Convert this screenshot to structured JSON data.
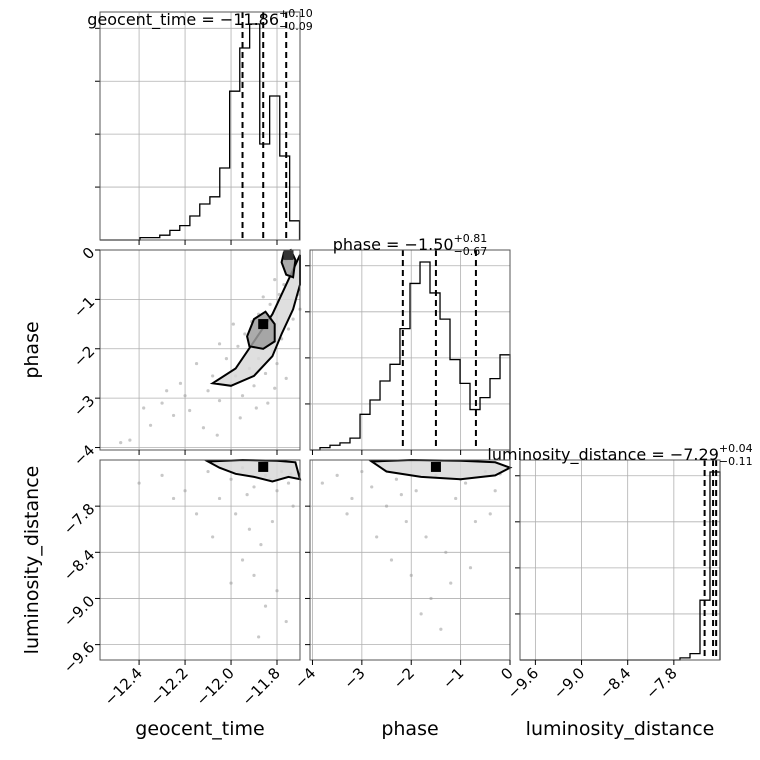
{
  "chart_data": {
    "type": "corner",
    "parameters": [
      "geocent_time",
      "phase",
      "luminosity_distance"
    ],
    "axis_labels": {
      "geocent_time": "geocent_time",
      "phase": "phase",
      "luminosity_distance": "luminosity_distance"
    },
    "titles": [
      {
        "parameter": "geocent_time",
        "prefix": "geocent_time = ",
        "median": "−11.86",
        "upper": "+0.10",
        "lower": "−0.09"
      },
      {
        "parameter": "phase",
        "prefix": "phase = ",
        "median": "−1.50",
        "upper": "+0.81",
        "lower": "−0.67"
      },
      {
        "parameter": "luminosity_distance",
        "prefix": "luminosity_distance = ",
        "median": "−7.29",
        "upper": "+0.04",
        "lower": "−0.11"
      }
    ],
    "ranges": {
      "geocent_time": [
        -12.57,
        -11.7
      ],
      "phase": [
        -4.05,
        0.0
      ],
      "luminosity_distance": [
        -9.8,
        -7.2
      ]
    },
    "ticks": {
      "geocent_time": [
        -12.4,
        -12.2,
        -12.0,
        -11.8
      ],
      "geocent_time_labels": [
        "−12.4",
        "−12.2",
        "−12.0",
        "−11.8"
      ],
      "phase": [
        -4,
        -3,
        -2,
        -1,
        0
      ],
      "phase_labels": [
        "−4",
        "−3",
        "−2",
        "−1",
        "0"
      ],
      "luminosity_distance": [
        -9.6,
        -9.0,
        -8.4,
        -7.8
      ],
      "luminosity_distance_labels": [
        "−9.6",
        "−9.0",
        "−8.4",
        "−7.8"
      ]
    },
    "quantiles": {
      "geocent_time": [
        -11.95,
        -11.86,
        -11.76
      ],
      "phase": [
        -2.17,
        -1.5,
        -0.69
      ],
      "luminosity_distance": [
        -7.4,
        -7.29,
        -7.25
      ]
    },
    "histograms": {
      "geocent_time": {
        "edges": [
          -12.57,
          -12.527,
          -12.483,
          -12.44,
          -12.396,
          -12.353,
          -12.31,
          -12.266,
          -12.223,
          -12.179,
          -12.136,
          -12.092,
          -12.049,
          -12.006,
          -11.962,
          -11.919,
          -11.875,
          -11.832,
          -11.788,
          -11.745,
          -11.702
        ],
        "counts": [
          0,
          0,
          0,
          0,
          1,
          1,
          2,
          4,
          6,
          10,
          15,
          18,
          30,
          62,
          80,
          90,
          40,
          60,
          35,
          8
        ]
      },
      "phase": {
        "edges": [
          -4.05,
          -3.848,
          -3.645,
          -3.443,
          -3.24,
          -3.037,
          -2.835,
          -2.632,
          -2.43,
          -2.228,
          -2.025,
          -1.822,
          -1.62,
          -1.417,
          -1.215,
          -1.012,
          -0.81,
          -0.607,
          -0.405,
          -0.202,
          0.0
        ],
        "counts": [
          0,
          1,
          2,
          3,
          5,
          15,
          21,
          29,
          36,
          51,
          70,
          79,
          66,
          55,
          38,
          28,
          17,
          22,
          30,
          40
        ]
      },
      "luminosity_distance": {
        "edges": [
          -9.8,
          -9.67,
          -9.54,
          -9.41,
          -9.28,
          -9.15,
          -9.02,
          -8.89,
          -8.76,
          -8.63,
          -8.5,
          -8.37,
          -8.24,
          -8.11,
          -7.98,
          -7.85,
          -7.72,
          -7.59,
          -7.46,
          -7.33,
          -7.2
        ],
        "counts": [
          0,
          0,
          0,
          0,
          0,
          0,
          0,
          0,
          0,
          0,
          0,
          0,
          0,
          0,
          0,
          0,
          0.5,
          1.5,
          14,
          44
        ]
      }
    },
    "scatter": {
      "geocent_time_vs_phase": [
        [
          -12.44,
          -3.85
        ],
        [
          -12.35,
          -3.55
        ],
        [
          -12.25,
          -3.35
        ],
        [
          -12.3,
          -3.1
        ],
        [
          -12.2,
          -2.95
        ],
        [
          -12.18,
          -3.25
        ],
        [
          -12.1,
          -2.85
        ],
        [
          -12.05,
          -3.05
        ],
        [
          -12.12,
          -3.6
        ],
        [
          -12.0,
          -2.7
        ],
        [
          -11.98,
          -2.55
        ],
        [
          -11.95,
          -2.95
        ],
        [
          -11.92,
          -2.4
        ],
        [
          -11.9,
          -2.75
        ],
        [
          -11.88,
          -2.2
        ],
        [
          -11.85,
          -2.5
        ],
        [
          -11.82,
          -2.05
        ],
        [
          -11.8,
          -2.3
        ],
        [
          -11.78,
          -1.8
        ],
        [
          -11.75,
          -1.6
        ],
        [
          -11.73,
          -1.4
        ],
        [
          -11.76,
          -2.6
        ],
        [
          -11.84,
          -3.1
        ],
        [
          -12.15,
          -2.3
        ],
        [
          -12.02,
          -2.2
        ],
        [
          -12.08,
          -2.55
        ],
        [
          -11.97,
          -1.95
        ],
        [
          -11.94,
          -1.7
        ],
        [
          -11.88,
          -1.3
        ],
        [
          -11.83,
          -1.1
        ],
        [
          -11.79,
          -0.9
        ],
        [
          -11.77,
          -0.7
        ],
        [
          -11.74,
          -0.5
        ],
        [
          -11.72,
          -0.3
        ],
        [
          -11.76,
          -0.2
        ],
        [
          -11.81,
          -0.6
        ],
        [
          -11.86,
          -0.95
        ],
        [
          -11.91,
          -1.45
        ],
        [
          -11.99,
          -1.5
        ],
        [
          -12.05,
          -1.9
        ],
        [
          -12.22,
          -2.7
        ],
        [
          -12.28,
          -2.85
        ],
        [
          -12.38,
          -3.2
        ],
        [
          -12.48,
          -3.9
        ],
        [
          -11.7,
          -1.2
        ],
        [
          -11.71,
          -0.9
        ],
        [
          -11.96,
          -3.4
        ],
        [
          -12.06,
          -3.75
        ],
        [
          -11.89,
          -3.2
        ],
        [
          -11.81,
          -2.8
        ]
      ],
      "geocent_time_vs_luminosity_distance": [
        [
          -12.4,
          -7.5
        ],
        [
          -12.3,
          -7.4
        ],
        [
          -12.2,
          -7.6
        ],
        [
          -12.1,
          -7.35
        ],
        [
          -12.05,
          -7.7
        ],
        [
          -12.0,
          -7.45
        ],
        [
          -11.98,
          -7.9
        ],
        [
          -11.95,
          -7.3
        ],
        [
          -11.92,
          -8.1
        ],
        [
          -11.9,
          -7.55
        ],
        [
          -11.87,
          -8.3
        ],
        [
          -11.85,
          -7.4
        ],
        [
          -11.82,
          -8.0
        ],
        [
          -11.8,
          -7.6
        ],
        [
          -11.78,
          -7.35
        ],
        [
          -11.75,
          -7.5
        ],
        [
          -11.73,
          -7.8
        ],
        [
          -11.9,
          -8.7
        ],
        [
          -11.85,
          -9.1
        ],
        [
          -11.95,
          -8.5
        ],
        [
          -12.08,
          -8.2
        ],
        [
          -11.88,
          -9.5
        ],
        [
          -11.8,
          -8.9
        ],
        [
          -12.15,
          -7.9
        ],
        [
          -12.25,
          -7.7
        ],
        [
          -11.76,
          -9.3
        ],
        [
          -12.0,
          -8.8
        ],
        [
          -11.93,
          -7.65
        ],
        [
          -11.83,
          -7.45
        ],
        [
          -11.74,
          -7.38
        ]
      ],
      "phase_vs_luminosity_distance": [
        [
          -3.8,
          -7.5
        ],
        [
          -3.5,
          -7.4
        ],
        [
          -3.2,
          -7.7
        ],
        [
          -3.0,
          -7.35
        ],
        [
          -2.8,
          -7.55
        ],
        [
          -2.5,
          -7.8
        ],
        [
          -2.3,
          -7.45
        ],
        [
          -2.1,
          -8.0
        ],
        [
          -1.9,
          -7.6
        ],
        [
          -1.7,
          -8.2
        ],
        [
          -1.5,
          -7.4
        ],
        [
          -1.3,
          -8.4
        ],
        [
          -1.1,
          -7.7
        ],
        [
          -0.9,
          -7.5
        ],
        [
          -0.7,
          -8.0
        ],
        [
          -0.5,
          -7.35
        ],
        [
          -0.3,
          -7.6
        ],
        [
          -2.0,
          -8.7
        ],
        [
          -1.6,
          -9.0
        ],
        [
          -1.2,
          -8.8
        ],
        [
          -2.4,
          -8.5
        ],
        [
          -1.4,
          -9.4
        ],
        [
          -0.8,
          -8.6
        ],
        [
          -2.7,
          -8.2
        ],
        [
          -3.3,
          -7.9
        ],
        [
          -1.8,
          -9.2
        ],
        [
          -0.4,
          -7.9
        ],
        [
          -2.2,
          -7.65
        ],
        [
          -1.0,
          -7.45
        ],
        [
          -0.2,
          -7.38
        ]
      ]
    },
    "density_peaks": {
      "geocent_time_vs_phase": [
        [
          -11.86,
          -1.5
        ],
        [
          -11.75,
          -0.1
        ]
      ],
      "geocent_time_vs_luminosity_distance": [
        [
          -11.86,
          -7.29
        ]
      ],
      "phase_vs_luminosity_distance": [
        [
          -1.5,
          -7.29
        ]
      ]
    },
    "contours": {
      "geocent_time_vs_phase": [
        [
          [
            -12.08,
            -2.7
          ],
          [
            -11.98,
            -2.4
          ],
          [
            -11.9,
            -1.85
          ],
          [
            -11.82,
            -1.3
          ],
          [
            -11.76,
            -0.7
          ],
          [
            -11.72,
            -0.3
          ],
          [
            -11.7,
            -0.1
          ],
          [
            -11.7,
            -0.7
          ],
          [
            -11.73,
            -1.2
          ],
          [
            -11.78,
            -1.7
          ],
          [
            -11.82,
            -2.15
          ],
          [
            -11.9,
            -2.55
          ],
          [
            -12.0,
            -2.75
          ],
          [
            -12.08,
            -2.7
          ]
        ],
        [
          [
            -11.93,
            -1.75
          ],
          [
            -11.9,
            -1.4
          ],
          [
            -11.85,
            -1.25
          ],
          [
            -11.81,
            -1.5
          ],
          [
            -11.81,
            -1.85
          ],
          [
            -11.86,
            -2.0
          ],
          [
            -11.92,
            -1.95
          ],
          [
            -11.93,
            -1.75
          ]
        ],
        [
          [
            -11.77,
            -0.05
          ],
          [
            -11.74,
            0.0
          ],
          [
            -11.72,
            -0.2
          ],
          [
            -11.73,
            -0.55
          ],
          [
            -11.76,
            -0.5
          ],
          [
            -11.78,
            -0.25
          ],
          [
            -11.77,
            -0.05
          ]
        ]
      ],
      "geocent_time_vs_luminosity_distance": [
        [
          [
            -12.1,
            -7.22
          ],
          [
            -11.95,
            -7.2
          ],
          [
            -11.8,
            -7.21
          ],
          [
            -11.72,
            -7.23
          ],
          [
            -11.7,
            -7.45
          ],
          [
            -11.75,
            -7.42
          ],
          [
            -11.82,
            -7.48
          ],
          [
            -11.9,
            -7.42
          ],
          [
            -11.98,
            -7.38
          ],
          [
            -12.05,
            -7.3
          ],
          [
            -12.1,
            -7.22
          ]
        ]
      ],
      "phase_vs_luminosity_distance": [
        [
          [
            -2.8,
            -7.22
          ],
          [
            -2.0,
            -7.2
          ],
          [
            -1.0,
            -7.21
          ],
          [
            -0.3,
            -7.23
          ],
          [
            0.0,
            -7.3
          ],
          [
            -0.3,
            -7.4
          ],
          [
            -1.0,
            -7.45
          ],
          [
            -1.8,
            -7.42
          ],
          [
            -2.5,
            -7.35
          ],
          [
            -2.8,
            -7.22
          ]
        ]
      ]
    }
  }
}
